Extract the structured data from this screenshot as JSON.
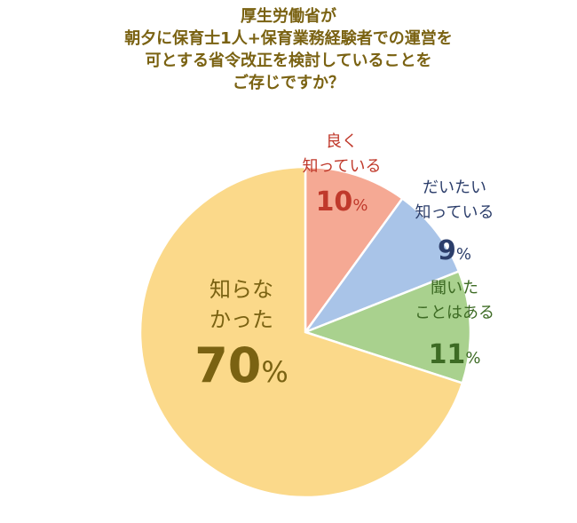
{
  "chart_data": {
    "type": "pie",
    "title_lines": [
      "厚生労働省が",
      "朝夕に保育士1人+保育業務経験者での運営を",
      "可とする省令改正を検討していることを",
      "ご存じですか？"
    ],
    "slices": [
      {
        "label_lines": [
          "良く",
          "知っている"
        ],
        "value": 10,
        "value_label": "10",
        "unit": "%",
        "color": "#f5a994",
        "text_color": "#c0392b"
      },
      {
        "label_lines": [
          "だいたい",
          "知っている"
        ],
        "value": 9,
        "value_label": "9",
        "unit": "%",
        "color": "#a9c4e8",
        "text_color": "#2c3e6b"
      },
      {
        "label_lines": [
          "聞いた",
          "ことはある"
        ],
        "value": 11,
        "value_label": "11",
        "unit": "%",
        "color": "#a9d18e",
        "text_color": "#3d6b24"
      },
      {
        "label_lines": [
          "知らな",
          "かった"
        ],
        "value": 70,
        "value_label": "70",
        "unit": "%",
        "color": "#fbd98a",
        "text_color": "#7a6212"
      }
    ]
  }
}
